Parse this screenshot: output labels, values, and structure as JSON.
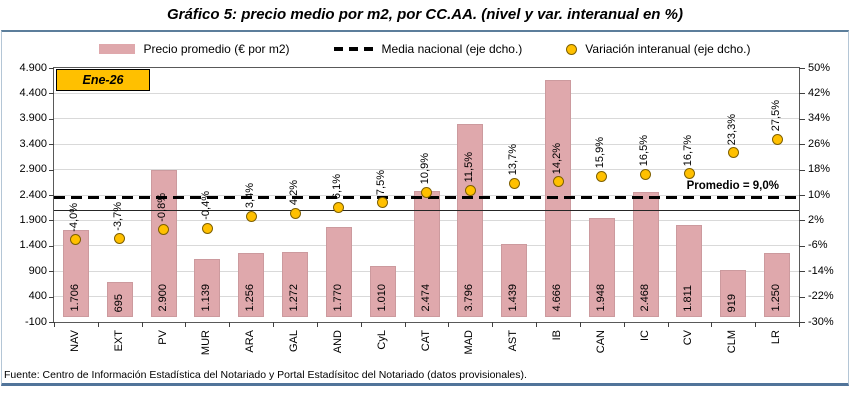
{
  "title": "Gráfico 5: precio medio por m2, por CC.AA. (nivel y var. interanual en %)",
  "period_label": "Ene-26",
  "annotation_label": "Promedio = 9,0%",
  "footer": "Fuente: Centro de Información Estadística del Notariado y Portal Estadísitoc del Notariado (datos provisionales).",
  "legend": {
    "bar_label": "Precio promedio (€ por m2)",
    "line_label": "Media nacional (eje dcho.)",
    "marker_label": "Variación interanual (eje dcho.)"
  },
  "colors": {
    "bar_fill": "#DFA8AC",
    "bar_border": "#CC9A9E",
    "marker_fill": "#FFC000",
    "marker_border": "#7F6000",
    "period_box_fill": "#FFC000",
    "gridline": "#D9D9D9",
    "axis": "#595959",
    "frame": "#5C7E9B",
    "dashed_line": "#000000"
  },
  "chart_data": {
    "type": "bar",
    "title": "Gráfico 5: precio medio por m2, por CC.AA. (nivel y var. interanual en %)",
    "categories": [
      "NAV",
      "EXT",
      "PV",
      "MUR",
      "ARA",
      "GAL",
      "AND",
      "CyL",
      "CAT",
      "MAD",
      "AST",
      "IB",
      "CAN",
      "IC",
      "CV",
      "CLM",
      "LR"
    ],
    "series": [
      {
        "name": "Precio promedio (€ por m2)",
        "type": "bar",
        "axis": "left",
        "values": [
          1706,
          695,
          2900,
          1139,
          1256,
          1272,
          1770,
          1010,
          2474,
          3796,
          1439,
          4666,
          1948,
          2468,
          1811,
          919,
          1250
        ],
        "labels": [
          "1.706",
          "695",
          "2.900",
          "1.139",
          "1.256",
          "1.272",
          "1.770",
          "1.010",
          "2.474",
          "3.796",
          "1.439",
          "4.666",
          "1.948",
          "2.468",
          "1.811",
          "919",
          "1.250"
        ]
      },
      {
        "name": "Variación interanual (eje dcho.)",
        "type": "scatter",
        "axis": "right",
        "values": [
          -4.0,
          -3.7,
          -0.8,
          -0.4,
          3.4,
          4.2,
          6.1,
          7.5,
          10.9,
          11.5,
          13.7,
          14.2,
          15.9,
          16.5,
          16.7,
          23.3,
          27.5
        ],
        "labels": [
          "-4,0%",
          "-3,7%",
          "-0,8%",
          "-0,4%",
          "3,4%",
          "4,2%",
          "6,1%",
          "7,5%",
          "10,9%",
          "11,5%",
          "13,7%",
          "14,2%",
          "15,9%",
          "16,5%",
          "16,7%",
          "23,3%",
          "27,5%"
        ]
      },
      {
        "name": "Media nacional (eje dcho.)",
        "type": "dashed-line",
        "axis": "right",
        "value": 9.0,
        "label": "Promedio = 9,0%"
      }
    ],
    "reference_solid_line": {
      "axis": "left",
      "value": 2100
    },
    "left_axis": {
      "min": -100,
      "max": 4900,
      "step": 500,
      "labels": [
        "4.900",
        "4.400",
        "3.900",
        "3.400",
        "2.900",
        "2.400",
        "1.900",
        "1.400",
        "900",
        "400",
        "-100"
      ]
    },
    "right_axis": {
      "min": -30,
      "max": 50,
      "step": 8,
      "labels": [
        "50%",
        "42%",
        "34%",
        "26%",
        "18%",
        "10%",
        "2%",
        "-6%",
        "-14%",
        "-22%",
        "-30%"
      ]
    },
    "grid": true,
    "legend_position": "top",
    "period_label": "Ene-26"
  }
}
